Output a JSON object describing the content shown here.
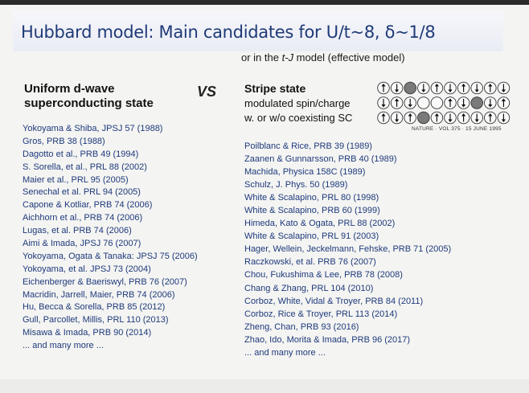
{
  "title": "Hubbard model: Main candidates for U/t~8, δ~1/8",
  "subtitle": {
    "before": "or in the ",
    "italic": "t-J",
    "after": " model (effective model)"
  },
  "left_heading": {
    "line1": "Uniform d-wave",
    "line2": "superconducting state"
  },
  "vs_label": "VS",
  "right_heading": {
    "title": "Stripe state",
    "line2": "modulated spin/charge",
    "line3": "w. or w/o coexisting SC"
  },
  "figure_caption": "NATURE · VOL 375 · 15 JUNE 1995",
  "left_refs": [
    "Yokoyama & Shiba, JPSJ 57 (1988)",
    "Gros, PRB 38 (1988)",
    "Dagotto et al., PRB 49 (1994)",
    "S. Sorella, et al., PRL 88 (2002)",
    "Maier et al., PRL 95 (2005)",
    "Senechal et al. PRL 94 (2005)",
    "Capone & Kotliar, PRB 74 (2006)",
    "Aichhorn et al., PRB 74 (2006)",
    "Lugas, et al. PRB 74 (2006)",
    "Aimi & Imada, JPSJ 76 (2007)",
    "Yokoyama, Ogata & Tanaka: JPSJ 75 (2006)",
    "Yokoyama, et al. JPSJ 73 (2004)",
    "Eichenberger & Baeriswyl, PRB 76 (2007)",
    "Macridin, Jarrell, Maier, PRB 74 (2006)",
    "Hu, Becca & Sorella, PRB 85 (2012)",
    "Gull, Parcollet, Millis, PRL 110 (2013)",
    "Misawa & Imada, PRB 90 (2014)",
    "... and many more ..."
  ],
  "right_refs": [
    "Poilblanc & Rice, PRB 39 (1989)",
    "Zaanen & Gunnarsson, PRB 40 (1989)",
    "Machida, Physica 158C (1989)",
    "Schulz, J. Phys. 50 (1989)",
    "White & Scalapino, PRL 80 (1998)",
    "White & Scalapino, PRB 60 (1999)",
    "Himeda, Kato & Ogata, PRL 88 (2002)",
    "White & Scalapino, PRL 91 (2003)",
    "Hager, Wellein, Jeckelmann, Fehske, PRB 71 (2005)",
    "Raczkowski, et al. PRB 76 (2007)",
    "Chou, Fukushima & Lee, PRB 78 (2008)",
    "Chang & Zhang, PRL 104 (2010)",
    "Corboz, White, Vidal & Troyer, PRB 84 (2011)",
    "Corboz, Rice & Troyer, PRL 113 (2014)",
    "Zheng, Chan, PRB 93 (2016)",
    "Zhao, Ido, Morita & Imada, PRB 96 (2017)",
    "... and many more ..."
  ],
  "stripe_lattice": {
    "rows": [
      [
        "up",
        "down",
        "hole",
        "down",
        "up",
        "down",
        "up",
        "down",
        "up",
        "down"
      ],
      [
        "down",
        "up",
        "down",
        "hole",
        "hole",
        "up",
        "down",
        "hole",
        "down",
        "up"
      ],
      [
        "up",
        "down",
        "up",
        "hole",
        "up",
        "down",
        "up",
        "down",
        "up",
        "down"
      ]
    ],
    "filled_cells": [
      [
        0,
        2
      ],
      [
        1,
        7
      ],
      [
        2,
        3
      ]
    ]
  },
  "colors": {
    "title": "#1f3a78",
    "reference_text": "#1e3a7c",
    "heading_text": "#111111",
    "background": "#f4f4f2"
  }
}
